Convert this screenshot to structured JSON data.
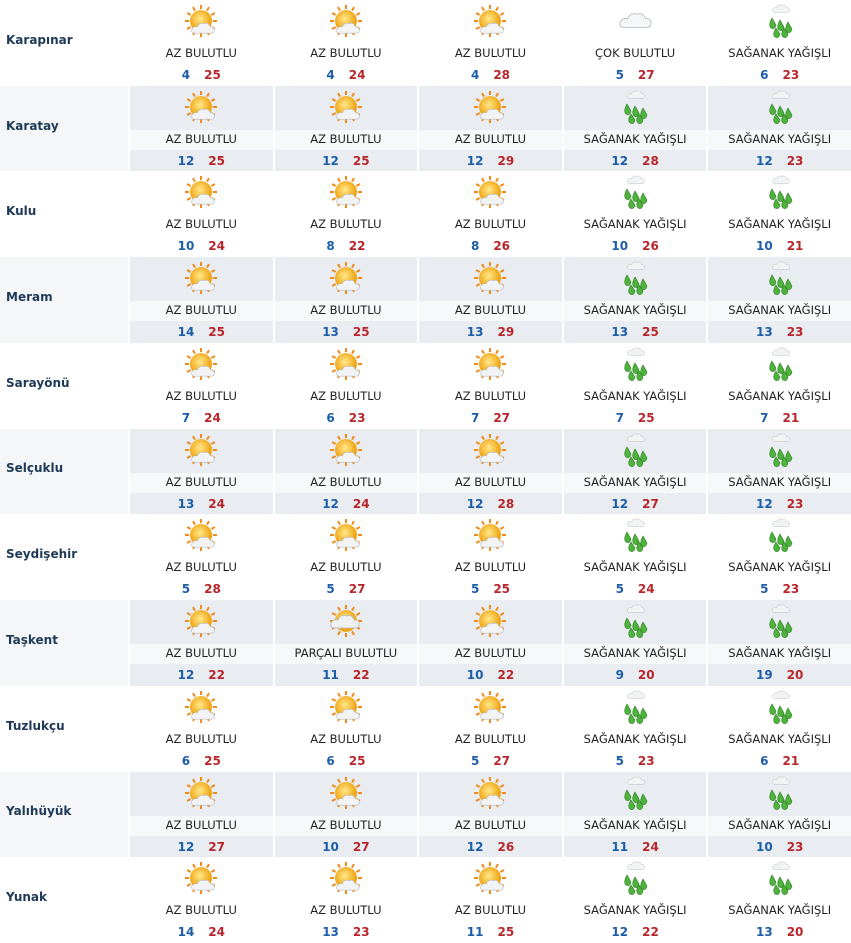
{
  "rows": [
    {
      "name": "Karapınar",
      "days": [
        {
          "condition": "AZ BULUTLU",
          "min": 4,
          "max": 25
        },
        {
          "condition": "AZ BULUTLU",
          "min": 4,
          "max": 24
        },
        {
          "condition": "AZ BULUTLU",
          "min": 4,
          "max": 28
        },
        {
          "condition": "ÇOK BULUTLU",
          "min": 5,
          "max": 27
        },
        {
          "condition": "SAĞANAK YAĞIŞLI",
          "min": 6,
          "max": 23
        }
      ]
    },
    {
      "name": "Karatay",
      "days": [
        {
          "condition": "AZ BULUTLU",
          "min": 12,
          "max": 25
        },
        {
          "condition": "AZ BULUTLU",
          "min": 12,
          "max": 25
        },
        {
          "condition": "AZ BULUTLU",
          "min": 12,
          "max": 29
        },
        {
          "condition": "SAĞANAK YAĞIŞLI",
          "min": 12,
          "max": 28
        },
        {
          "condition": "SAĞANAK YAĞIŞLI",
          "min": 12,
          "max": 23
        }
      ]
    },
    {
      "name": "Kulu",
      "days": [
        {
          "condition": "AZ BULUTLU",
          "min": 10,
          "max": 24
        },
        {
          "condition": "AZ BULUTLU",
          "min": 8,
          "max": 22
        },
        {
          "condition": "AZ BULUTLU",
          "min": 8,
          "max": 26
        },
        {
          "condition": "SAĞANAK YAĞIŞLI",
          "min": 10,
          "max": 26
        },
        {
          "condition": "SAĞANAK YAĞIŞLI",
          "min": 10,
          "max": 21
        }
      ]
    },
    {
      "name": "Meram",
      "days": [
        {
          "condition": "AZ BULUTLU",
          "min": 14,
          "max": 25
        },
        {
          "condition": "AZ BULUTLU",
          "min": 13,
          "max": 25
        },
        {
          "condition": "AZ BULUTLU",
          "min": 13,
          "max": 29
        },
        {
          "condition": "SAĞANAK YAĞIŞLI",
          "min": 13,
          "max": 25
        },
        {
          "condition": "SAĞANAK YAĞIŞLI",
          "min": 13,
          "max": 23
        }
      ]
    },
    {
      "name": "Sarayönü",
      "days": [
        {
          "condition": "AZ BULUTLU",
          "min": 7,
          "max": 24
        },
        {
          "condition": "AZ BULUTLU",
          "min": 6,
          "max": 23
        },
        {
          "condition": "AZ BULUTLU",
          "min": 7,
          "max": 27
        },
        {
          "condition": "SAĞANAK YAĞIŞLI",
          "min": 7,
          "max": 25
        },
        {
          "condition": "SAĞANAK YAĞIŞLI",
          "min": 7,
          "max": 21
        }
      ]
    },
    {
      "name": "Selçuklu",
      "days": [
        {
          "condition": "AZ BULUTLU",
          "min": 13,
          "max": 24
        },
        {
          "condition": "AZ BULUTLU",
          "min": 12,
          "max": 24
        },
        {
          "condition": "AZ BULUTLU",
          "min": 12,
          "max": 28
        },
        {
          "condition": "SAĞANAK YAĞIŞLI",
          "min": 12,
          "max": 27
        },
        {
          "condition": "SAĞANAK YAĞIŞLI",
          "min": 12,
          "max": 23
        }
      ]
    },
    {
      "name": "Seydişehir",
      "days": [
        {
          "condition": "AZ BULUTLU",
          "min": 5,
          "max": 28
        },
        {
          "condition": "AZ BULUTLU",
          "min": 5,
          "max": 27
        },
        {
          "condition": "AZ BULUTLU",
          "min": 5,
          "max": 25
        },
        {
          "condition": "SAĞANAK YAĞIŞLI",
          "min": 5,
          "max": 24
        },
        {
          "condition": "SAĞANAK YAĞIŞLI",
          "min": 5,
          "max": 23
        }
      ]
    },
    {
      "name": "Taşkent",
      "days": [
        {
          "condition": "AZ BULUTLU",
          "min": 12,
          "max": 22
        },
        {
          "condition": "PARÇALI BULUTLU",
          "min": 11,
          "max": 22
        },
        {
          "condition": "AZ BULUTLU",
          "min": 10,
          "max": 22
        },
        {
          "condition": "SAĞANAK YAĞIŞLI",
          "min": 9,
          "max": 20
        },
        {
          "condition": "SAĞANAK YAĞIŞLI",
          "min": 19,
          "max": 20
        }
      ]
    },
    {
      "name": "Tuzlukçu",
      "days": [
        {
          "condition": "AZ BULUTLU",
          "min": 6,
          "max": 25
        },
        {
          "condition": "AZ BULUTLU",
          "min": 6,
          "max": 25
        },
        {
          "condition": "AZ BULUTLU",
          "min": 5,
          "max": 27
        },
        {
          "condition": "SAĞANAK YAĞIŞLI",
          "min": 5,
          "max": 23
        },
        {
          "condition": "SAĞANAK YAĞIŞLI",
          "min": 6,
          "max": 21
        }
      ]
    },
    {
      "name": "Yalıhüyük",
      "days": [
        {
          "condition": "AZ BULUTLU",
          "min": 12,
          "max": 27
        },
        {
          "condition": "AZ BULUTLU",
          "min": 10,
          "max": 27
        },
        {
          "condition": "AZ BULUTLU",
          "min": 12,
          "max": 26
        },
        {
          "condition": "SAĞANAK YAĞIŞLI",
          "min": 11,
          "max": 24
        },
        {
          "condition": "SAĞANAK YAĞIŞLI",
          "min": 10,
          "max": 23
        }
      ]
    },
    {
      "name": "Yunak",
      "days": [
        {
          "condition": "AZ BULUTLU",
          "min": 14,
          "max": 24
        },
        {
          "condition": "AZ BULUTLU",
          "min": 13,
          "max": 23
        },
        {
          "condition": "AZ BULUTLU",
          "min": 11,
          "max": 25
        },
        {
          "condition": "SAĞANAK YAĞIŞLI",
          "min": 12,
          "max": 22
        },
        {
          "condition": "SAĞANAK YAĞIŞLI",
          "min": 13,
          "max": 20
        }
      ]
    }
  ]
}
